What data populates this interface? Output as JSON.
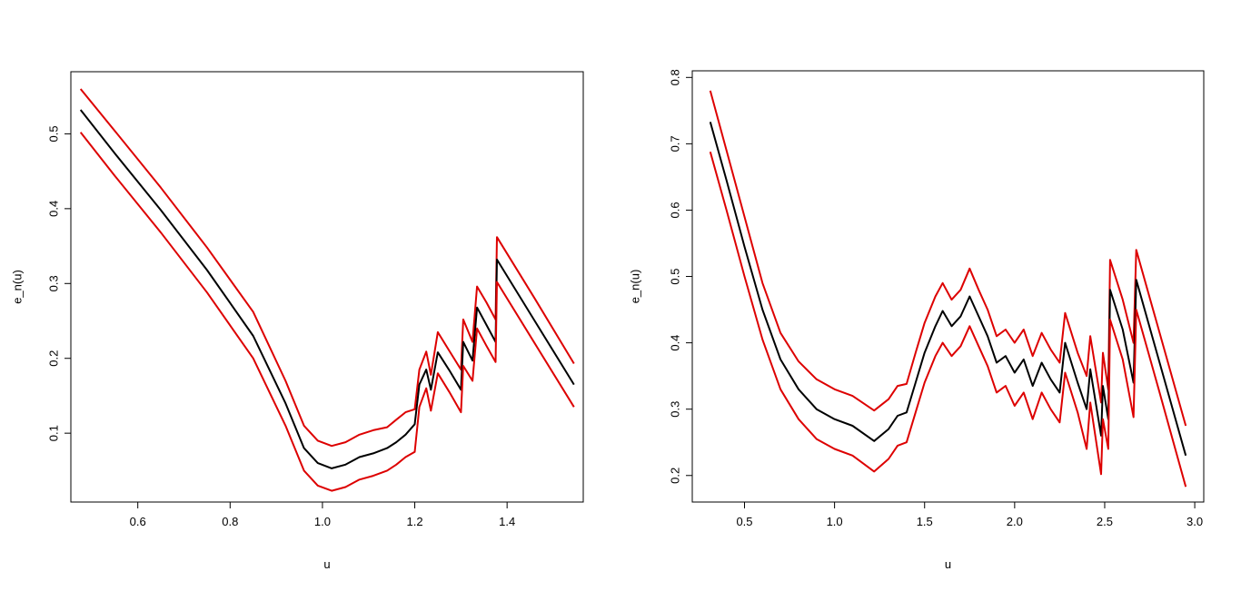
{
  "colors": {
    "mean": "#000000",
    "band": "#dd0000"
  },
  "chart_data": [
    {
      "type": "line",
      "title": "",
      "xlabel": "u",
      "ylabel": "e_n(u)",
      "xlim": [
        0.455,
        1.565
      ],
      "ylim": [
        0.008,
        0.583
      ],
      "xticks": [
        0.6,
        0.8,
        1.0,
        1.2,
        1.4
      ],
      "xtick_labels": [
        "0.6",
        "0.8",
        "1.0",
        "1.2",
        "1.4"
      ],
      "yticks": [
        0.1,
        0.2,
        0.3,
        0.4,
        0.5
      ],
      "ytick_labels": [
        "0.1",
        "0.2",
        "0.3",
        "0.4",
        "0.5"
      ],
      "grid": false,
      "legend": "none",
      "series": [
        {
          "role": "upper",
          "color": "#dd0000",
          "points": [
            [
              0.476,
              0.56
            ],
            [
              0.55,
              0.504
            ],
            [
              0.65,
              0.428
            ],
            [
              0.75,
              0.348
            ],
            [
              0.85,
              0.262
            ],
            [
              0.92,
              0.17
            ],
            [
              0.96,
              0.11
            ],
            [
              0.99,
              0.09
            ],
            [
              1.02,
              0.083
            ],
            [
              1.05,
              0.088
            ],
            [
              1.08,
              0.098
            ],
            [
              1.11,
              0.104
            ],
            [
              1.14,
              0.108
            ],
            [
              1.16,
              0.118
            ],
            [
              1.18,
              0.128
            ],
            [
              1.2,
              0.132
            ],
            [
              1.21,
              0.185
            ],
            [
              1.225,
              0.209
            ],
            [
              1.235,
              0.178
            ],
            [
              1.25,
              0.235
            ],
            [
              1.275,
              0.21
            ],
            [
              1.3,
              0.185
            ],
            [
              1.305,
              0.252
            ],
            [
              1.325,
              0.222
            ],
            [
              1.335,
              0.296
            ],
            [
              1.355,
              0.275
            ],
            [
              1.375,
              0.252
            ],
            [
              1.378,
              0.362
            ],
            [
              1.46,
              0.28
            ],
            [
              1.545,
              0.193
            ]
          ]
        },
        {
          "role": "mean",
          "color": "#000000",
          "points": [
            [
              0.476,
              0.532
            ],
            [
              0.55,
              0.474
            ],
            [
              0.65,
              0.398
            ],
            [
              0.75,
              0.318
            ],
            [
              0.85,
              0.23
            ],
            [
              0.92,
              0.14
            ],
            [
              0.96,
              0.08
            ],
            [
              0.99,
              0.06
            ],
            [
              1.02,
              0.053
            ],
            [
              1.05,
              0.058
            ],
            [
              1.08,
              0.068
            ],
            [
              1.11,
              0.073
            ],
            [
              1.14,
              0.08
            ],
            [
              1.16,
              0.088
            ],
            [
              1.18,
              0.098
            ],
            [
              1.2,
              0.112
            ],
            [
              1.21,
              0.165
            ],
            [
              1.225,
              0.185
            ],
            [
              1.235,
              0.158
            ],
            [
              1.25,
              0.208
            ],
            [
              1.275,
              0.184
            ],
            [
              1.3,
              0.158
            ],
            [
              1.305,
              0.222
            ],
            [
              1.325,
              0.197
            ],
            [
              1.335,
              0.268
            ],
            [
              1.355,
              0.245
            ],
            [
              1.375,
              0.222
            ],
            [
              1.378,
              0.332
            ],
            [
              1.46,
              0.25
            ],
            [
              1.545,
              0.165
            ]
          ]
        },
        {
          "role": "lower",
          "color": "#dd0000",
          "points": [
            [
              0.476,
              0.502
            ],
            [
              0.55,
              0.444
            ],
            [
              0.65,
              0.368
            ],
            [
              0.75,
              0.288
            ],
            [
              0.85,
              0.2
            ],
            [
              0.92,
              0.11
            ],
            [
              0.96,
              0.05
            ],
            [
              0.99,
              0.03
            ],
            [
              1.02,
              0.023
            ],
            [
              1.05,
              0.028
            ],
            [
              1.08,
              0.038
            ],
            [
              1.11,
              0.043
            ],
            [
              1.14,
              0.05
            ],
            [
              1.16,
              0.058
            ],
            [
              1.18,
              0.068
            ],
            [
              1.2,
              0.075
            ],
            [
              1.21,
              0.135
            ],
            [
              1.225,
              0.16
            ],
            [
              1.235,
              0.13
            ],
            [
              1.25,
              0.18
            ],
            [
              1.275,
              0.155
            ],
            [
              1.3,
              0.128
            ],
            [
              1.305,
              0.19
            ],
            [
              1.325,
              0.17
            ],
            [
              1.335,
              0.24
            ],
            [
              1.355,
              0.217
            ],
            [
              1.375,
              0.195
            ],
            [
              1.378,
              0.302
            ],
            [
              1.46,
              0.22
            ],
            [
              1.545,
              0.135
            ]
          ]
        }
      ]
    },
    {
      "type": "line",
      "title": "",
      "xlabel": "u",
      "ylabel": "e_n(u)",
      "xlim": [
        0.21,
        3.05
      ],
      "ylim": [
        0.16,
        0.81
      ],
      "xticks": [
        0.5,
        1.0,
        1.5,
        2.0,
        2.5,
        3.0
      ],
      "xtick_labels": [
        "0.5",
        "1.0",
        "1.5",
        "2.0",
        "2.5",
        "3.0"
      ],
      "yticks": [
        0.2,
        0.3,
        0.4,
        0.5,
        0.6,
        0.7,
        0.8
      ],
      "ytick_labels": [
        "0.2",
        "0.3",
        "0.4",
        "0.5",
        "0.6",
        "0.7",
        "0.8"
      ],
      "grid": false,
      "legend": "none",
      "series": [
        {
          "role": "upper",
          "color": "#dd0000",
          "points": [
            [
              0.31,
              0.78
            ],
            [
              0.4,
              0.69
            ],
            [
              0.5,
              0.59
            ],
            [
              0.6,
              0.49
            ],
            [
              0.7,
              0.415
            ],
            [
              0.8,
              0.372
            ],
            [
              0.9,
              0.345
            ],
            [
              1.0,
              0.33
            ],
            [
              1.1,
              0.32
            ],
            [
              1.22,
              0.298
            ],
            [
              1.3,
              0.315
            ],
            [
              1.35,
              0.335
            ],
            [
              1.4,
              0.338
            ],
            [
              1.45,
              0.385
            ],
            [
              1.5,
              0.43
            ],
            [
              1.56,
              0.47
            ],
            [
              1.6,
              0.49
            ],
            [
              1.65,
              0.465
            ],
            [
              1.7,
              0.48
            ],
            [
              1.75,
              0.512
            ],
            [
              1.8,
              0.48
            ],
            [
              1.85,
              0.45
            ],
            [
              1.9,
              0.41
            ],
            [
              1.95,
              0.42
            ],
            [
              2.0,
              0.4
            ],
            [
              2.05,
              0.42
            ],
            [
              2.1,
              0.38
            ],
            [
              2.15,
              0.415
            ],
            [
              2.2,
              0.39
            ],
            [
              2.25,
              0.37
            ],
            [
              2.28,
              0.445
            ],
            [
              2.35,
              0.385
            ],
            [
              2.4,
              0.35
            ],
            [
              2.42,
              0.41
            ],
            [
              2.48,
              0.31
            ],
            [
              2.49,
              0.385
            ],
            [
              2.52,
              0.33
            ],
            [
              2.53,
              0.525
            ],
            [
              2.6,
              0.465
            ],
            [
              2.66,
              0.4
            ],
            [
              2.675,
              0.54
            ],
            [
              2.8,
              0.42
            ],
            [
              2.95,
              0.275
            ]
          ]
        },
        {
          "role": "mean",
          "color": "#000000",
          "points": [
            [
              0.31,
              0.733
            ],
            [
              0.4,
              0.645
            ],
            [
              0.5,
              0.545
            ],
            [
              0.6,
              0.45
            ],
            [
              0.7,
              0.375
            ],
            [
              0.8,
              0.33
            ],
            [
              0.9,
              0.3
            ],
            [
              1.0,
              0.285
            ],
            [
              1.1,
              0.275
            ],
            [
              1.22,
              0.252
            ],
            [
              1.3,
              0.27
            ],
            [
              1.35,
              0.29
            ],
            [
              1.4,
              0.295
            ],
            [
              1.45,
              0.34
            ],
            [
              1.5,
              0.385
            ],
            [
              1.56,
              0.425
            ],
            [
              1.6,
              0.448
            ],
            [
              1.65,
              0.425
            ],
            [
              1.7,
              0.44
            ],
            [
              1.75,
              0.47
            ],
            [
              1.8,
              0.44
            ],
            [
              1.85,
              0.41
            ],
            [
              1.9,
              0.37
            ],
            [
              1.95,
              0.38
            ],
            [
              2.0,
              0.355
            ],
            [
              2.05,
              0.375
            ],
            [
              2.1,
              0.335
            ],
            [
              2.15,
              0.37
            ],
            [
              2.2,
              0.345
            ],
            [
              2.25,
              0.325
            ],
            [
              2.28,
              0.4
            ],
            [
              2.35,
              0.34
            ],
            [
              2.4,
              0.3
            ],
            [
              2.42,
              0.36
            ],
            [
              2.48,
              0.26
            ],
            [
              2.49,
              0.335
            ],
            [
              2.52,
              0.285
            ],
            [
              2.53,
              0.48
            ],
            [
              2.6,
              0.42
            ],
            [
              2.66,
              0.34
            ],
            [
              2.675,
              0.495
            ],
            [
              2.8,
              0.375
            ],
            [
              2.95,
              0.23
            ]
          ]
        },
        {
          "role": "lower",
          "color": "#dd0000",
          "points": [
            [
              0.31,
              0.688
            ],
            [
              0.4,
              0.6
            ],
            [
              0.5,
              0.5
            ],
            [
              0.6,
              0.405
            ],
            [
              0.7,
              0.33
            ],
            [
              0.8,
              0.285
            ],
            [
              0.9,
              0.255
            ],
            [
              1.0,
              0.24
            ],
            [
              1.1,
              0.23
            ],
            [
              1.22,
              0.206
            ],
            [
              1.3,
              0.225
            ],
            [
              1.35,
              0.245
            ],
            [
              1.4,
              0.25
            ],
            [
              1.45,
              0.295
            ],
            [
              1.5,
              0.34
            ],
            [
              1.56,
              0.38
            ],
            [
              1.6,
              0.4
            ],
            [
              1.65,
              0.38
            ],
            [
              1.7,
              0.395
            ],
            [
              1.75,
              0.425
            ],
            [
              1.8,
              0.395
            ],
            [
              1.85,
              0.365
            ],
            [
              1.9,
              0.325
            ],
            [
              1.95,
              0.335
            ],
            [
              2.0,
              0.305
            ],
            [
              2.05,
              0.325
            ],
            [
              2.1,
              0.285
            ],
            [
              2.15,
              0.325
            ],
            [
              2.2,
              0.3
            ],
            [
              2.25,
              0.28
            ],
            [
              2.28,
              0.355
            ],
            [
              2.35,
              0.295
            ],
            [
              2.4,
              0.24
            ],
            [
              2.42,
              0.31
            ],
            [
              2.48,
              0.202
            ],
            [
              2.49,
              0.285
            ],
            [
              2.52,
              0.24
            ],
            [
              2.53,
              0.435
            ],
            [
              2.6,
              0.375
            ],
            [
              2.66,
              0.288
            ],
            [
              2.675,
              0.45
            ],
            [
              2.8,
              0.33
            ],
            [
              2.95,
              0.183
            ]
          ]
        }
      ]
    }
  ]
}
